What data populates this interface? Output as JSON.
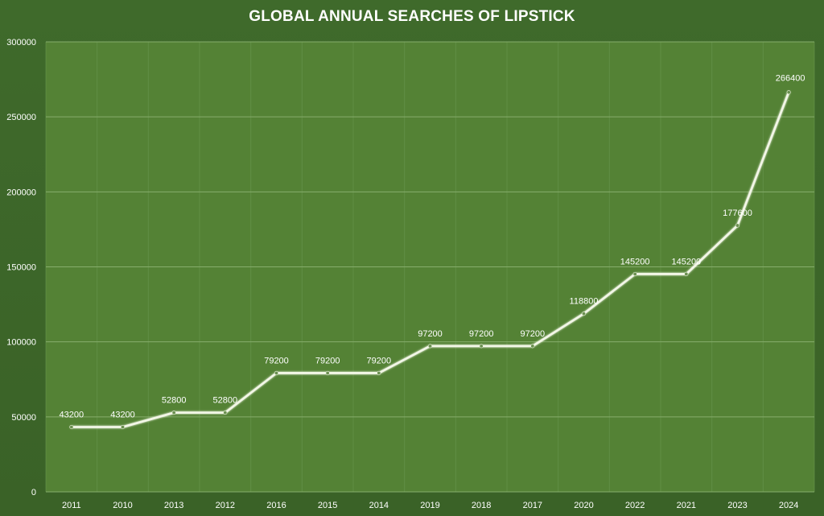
{
  "chart_data": {
    "type": "line",
    "title": "GLOBAL ANNUAL SEARCHES OF LIPSTICK",
    "xlabel": "",
    "ylabel": "",
    "categories": [
      "2011",
      "2010",
      "2013",
      "2012",
      "2016",
      "2015",
      "2014",
      "2019",
      "2018",
      "2017",
      "2020",
      "2022",
      "2021",
      "2023",
      "2024"
    ],
    "series": [
      {
        "values": [
          43200,
          43200,
          52800,
          52800,
          79200,
          79200,
          79200,
          97200,
          97200,
          97200,
          118800,
          145200,
          145200,
          177600,
          266400
        ]
      }
    ],
    "ylim": [
      0,
      300000
    ],
    "yticks": [
      0,
      50000,
      100000,
      150000,
      200000,
      250000,
      300000
    ],
    "grid": true,
    "legend": "none",
    "colors": {
      "background": "#3d6629",
      "plot_area": "#548235",
      "gridline": "#86ad6c",
      "line": "#f2f6e6",
      "text": "#ffffff"
    }
  }
}
